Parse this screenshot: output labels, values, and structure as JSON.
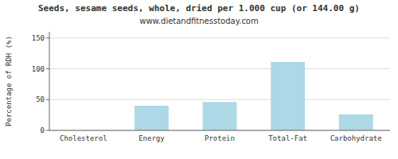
{
  "chart_data": {
    "type": "bar",
    "title": "Seeds, sesame seeds, whole, dried per 1.000 cup (or 144.00 g)",
    "subtitle": "www.dietandfitnesstoday.com",
    "categories": [
      "Cholesterol",
      "Energy",
      "Protein",
      "Total-Fat",
      "Carbohydrate"
    ],
    "values": [
      0,
      40,
      46,
      111,
      26
    ],
    "color": "#add8e6",
    "ylabel": "Percentage of RDH (%)",
    "ylim": [
      0,
      160
    ],
    "yticks": [
      0,
      50,
      100,
      150
    ],
    "grid": true
  }
}
